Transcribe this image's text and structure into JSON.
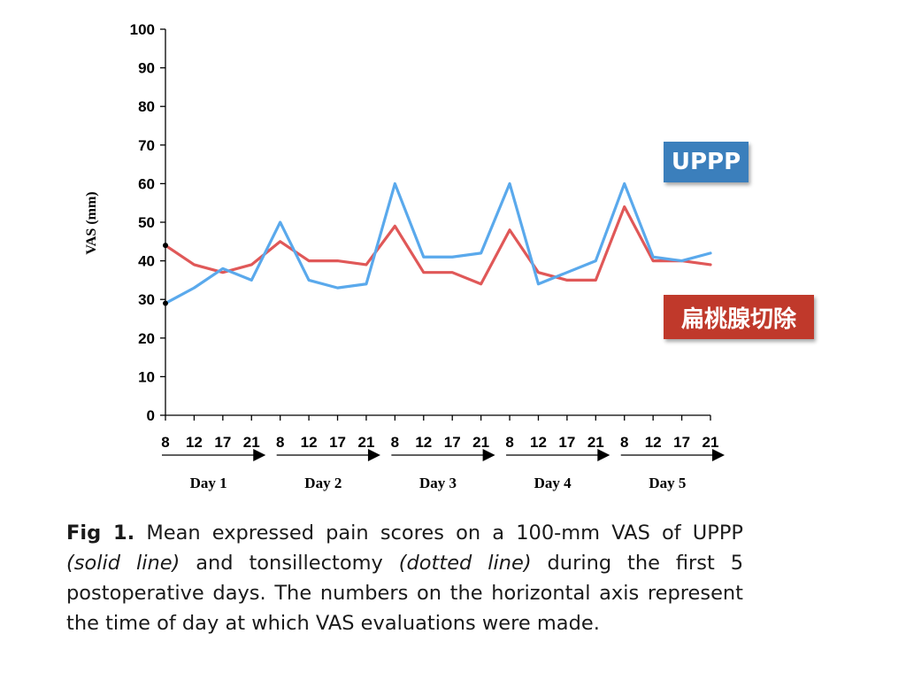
{
  "chart_data": {
    "type": "line",
    "ylabel": "VAS (mm)",
    "ylim": [
      0,
      100
    ],
    "yticks": [
      "0",
      "10",
      "20",
      "30",
      "40",
      "50",
      "60",
      "70",
      "80",
      "90",
      "100"
    ],
    "x_tick_labels": [
      "8",
      "12",
      "17",
      "21",
      "8",
      "12",
      "17",
      "21",
      "8",
      "12",
      "17",
      "21",
      "8",
      "12",
      "17",
      "21",
      "8",
      "12",
      "17",
      "21"
    ],
    "day_labels": [
      "Day 1",
      "Day 2",
      "Day 3",
      "Day 4",
      "Day 5"
    ],
    "grid": false,
    "series": [
      {
        "name": "UPPP",
        "color": "#5aa9ec",
        "values": [
          29,
          33,
          38,
          35,
          50,
          35,
          33,
          34,
          60,
          41,
          41,
          42,
          60,
          34,
          37,
          40,
          60,
          41,
          40,
          42
        ]
      },
      {
        "name": "扁桃腺切除",
        "color": "#e05858",
        "values": [
          44,
          39,
          37,
          39,
          45,
          40,
          40,
          39,
          49,
          37,
          37,
          34,
          48,
          37,
          35,
          35,
          54,
          40,
          40,
          39
        ]
      }
    ]
  },
  "legend": {
    "uppp": "UPPP",
    "tonsillectomy": "扁桃腺切除",
    "uppp_color": "#3b7fbc",
    "tonsillectomy_color": "#c0392b"
  },
  "caption": {
    "label": "Fig 1.",
    "part1": " Mean expressed pain scores on a 100-mm VAS of UPPP ",
    "italic1": "(solid line)",
    "part2": " and tonsillectomy ",
    "italic2": "(dotted line)",
    "part3": " during the first 5 postoperative days. The numbers on the horizontal axis represent the time of day at which VAS evaluations were made."
  }
}
